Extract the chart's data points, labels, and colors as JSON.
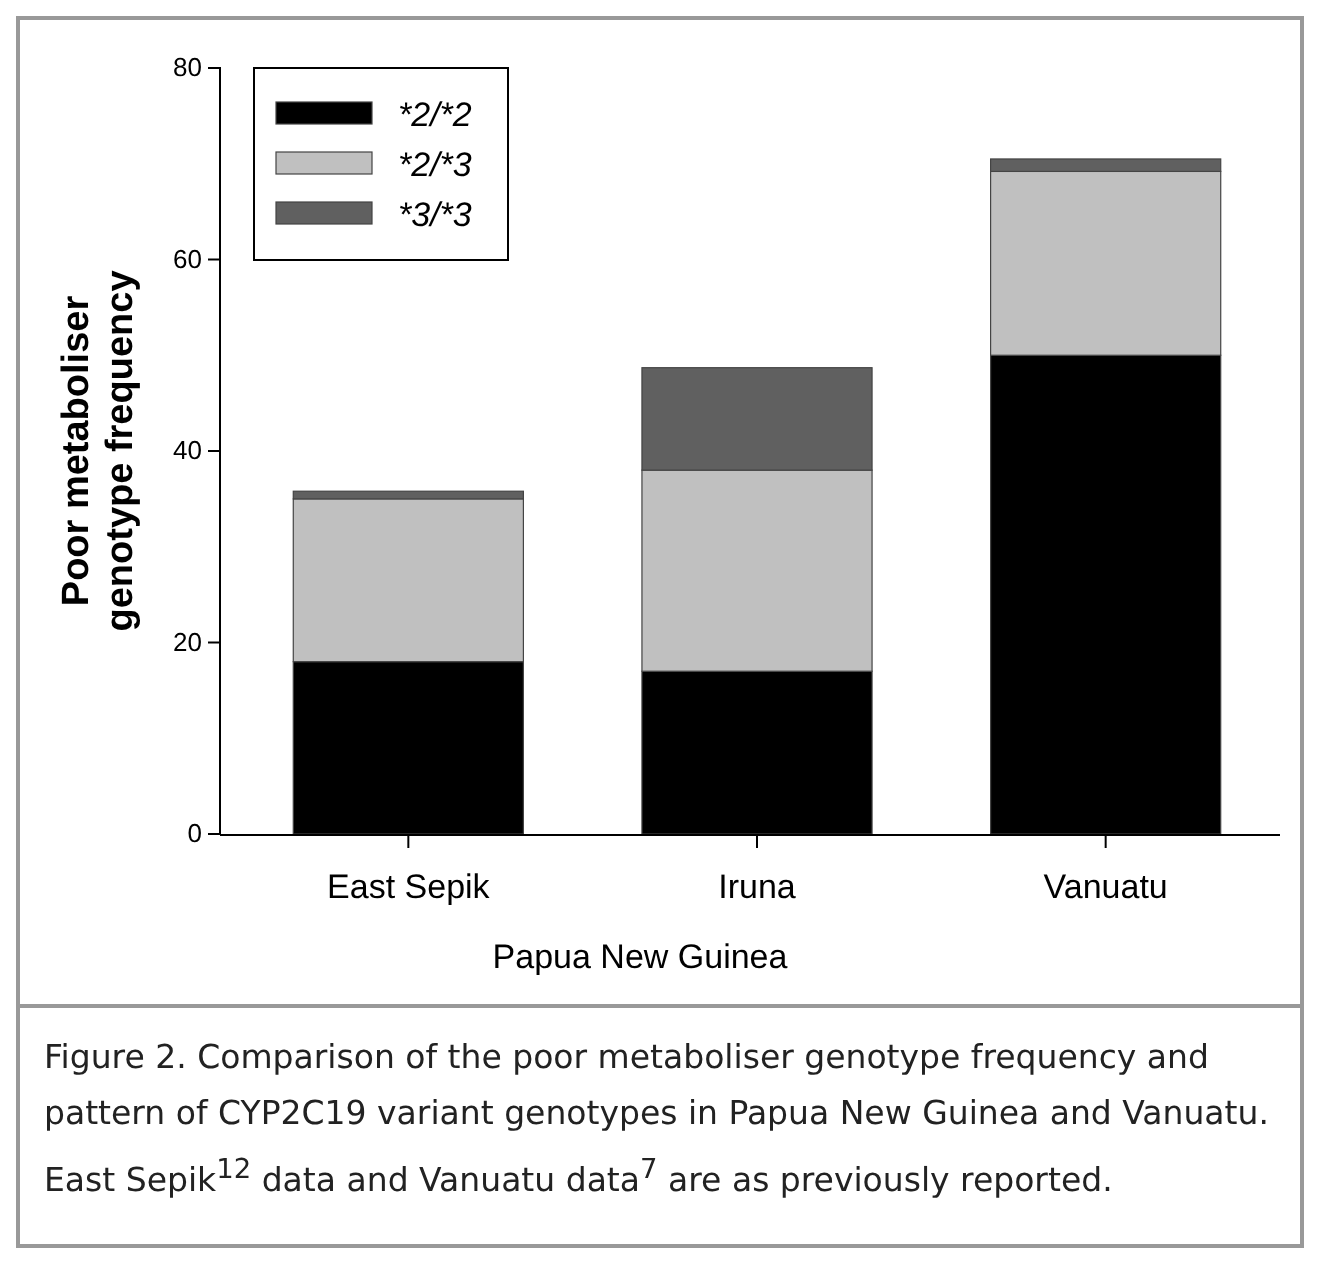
{
  "chart_data": {
    "type": "bar",
    "stacked": true,
    "categories": [
      "East Sepik",
      "Iruna",
      "Vanuatu"
    ],
    "xlabel": "Papua New Guinea",
    "ylabel": "Poor metaboliser genotype frequency",
    "series": [
      {
        "name": "*2/*2",
        "color": "#000000",
        "values": [
          18,
          17,
          50
        ]
      },
      {
        "name": "*2/*3",
        "color": "#c0c0c0",
        "values": [
          17,
          21,
          19.2
        ]
      },
      {
        "name": "*3/*3",
        "color": "#606060",
        "values": [
          0.8,
          10.7,
          1.3
        ]
      }
    ],
    "ylim": [
      0,
      80
    ],
    "yticks": [
      0,
      20,
      40,
      60,
      80
    ],
    "grid": false,
    "legend": "top left",
    "annotations": [
      "Figure 2. Comparison of the poor metaboliser genotype frequency and pattern of CYP2C19 variant genotypes in Papua New Guinea and Vanuatu. East Sepik$^{12}$ data and Vanuatu data$^{7}$ are as previously reported."
    ]
  }
}
